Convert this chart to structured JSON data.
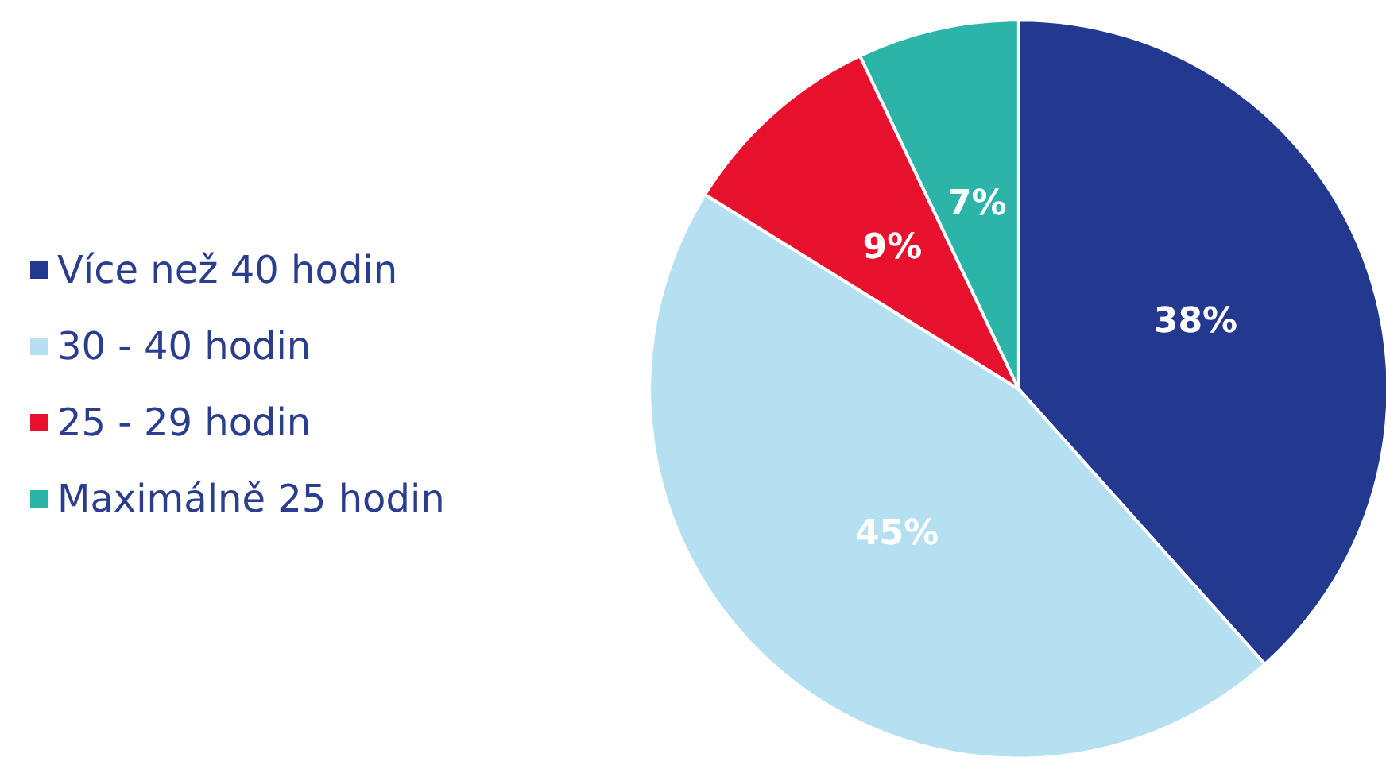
{
  "chart_data": {
    "type": "pie",
    "categories": [
      "Více než 40 hodin",
      "30 - 40 hodin",
      "25 - 29 hodin",
      "Maximálně 25 hodin"
    ],
    "values": [
      38,
      45,
      9,
      7
    ],
    "colors": [
      "#23388f",
      "#b5e0f2",
      "#e8112d",
      "#2bb5a8"
    ],
    "value_labels": [
      "38%",
      "45%",
      "9%",
      "7%"
    ],
    "legend": "left"
  }
}
